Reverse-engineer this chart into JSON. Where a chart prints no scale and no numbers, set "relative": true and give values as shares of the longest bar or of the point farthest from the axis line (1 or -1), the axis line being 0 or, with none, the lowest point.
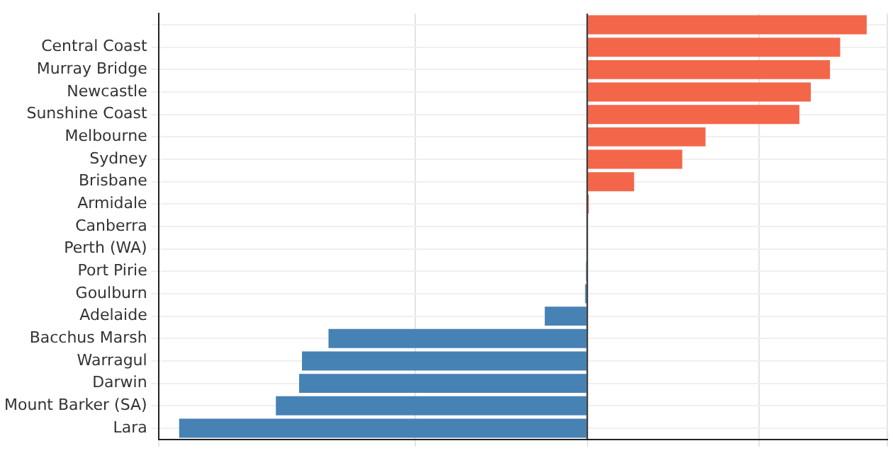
{
  "chart_data": {
    "type": "bar",
    "orientation": "horizontal",
    "relative": true,
    "grid": true,
    "legend": false,
    "categories": [
      null,
      "Central Coast",
      "Murray Bridge",
      "Newcastle",
      "Sunshine Coast",
      "Melbourne",
      "Sydney",
      "Brisbane",
      "Armidale",
      "Canberra",
      "Perth (WA)",
      "Port Pirie",
      "Goulburn",
      "Adelaide",
      "Bacchus Marsh",
      "Warragul",
      "Darwin",
      "Mount Barker (SA)",
      "Lara"
    ],
    "values": [
      0.685,
      0.62,
      0.595,
      0.548,
      0.52,
      0.29,
      0.233,
      0.115,
      0.004,
      0,
      0,
      -0.003,
      -0.005,
      -0.104,
      -0.634,
      -0.699,
      -0.706,
      -0.763,
      -1
    ],
    "colors": [
      "#f4664a",
      "#f4664a",
      "#f4664a",
      "#f4664a",
      "#f4664a",
      "#f4664a",
      "#f4664a",
      "#f4664a",
      "#f4664a",
      "#f4664a",
      "#f4664a",
      "#4682b4",
      "#4682b4",
      "#4682b4",
      "#4682b4",
      "#4682b4",
      "#4682b4",
      "#4682b4",
      "#4682b4"
    ]
  }
}
